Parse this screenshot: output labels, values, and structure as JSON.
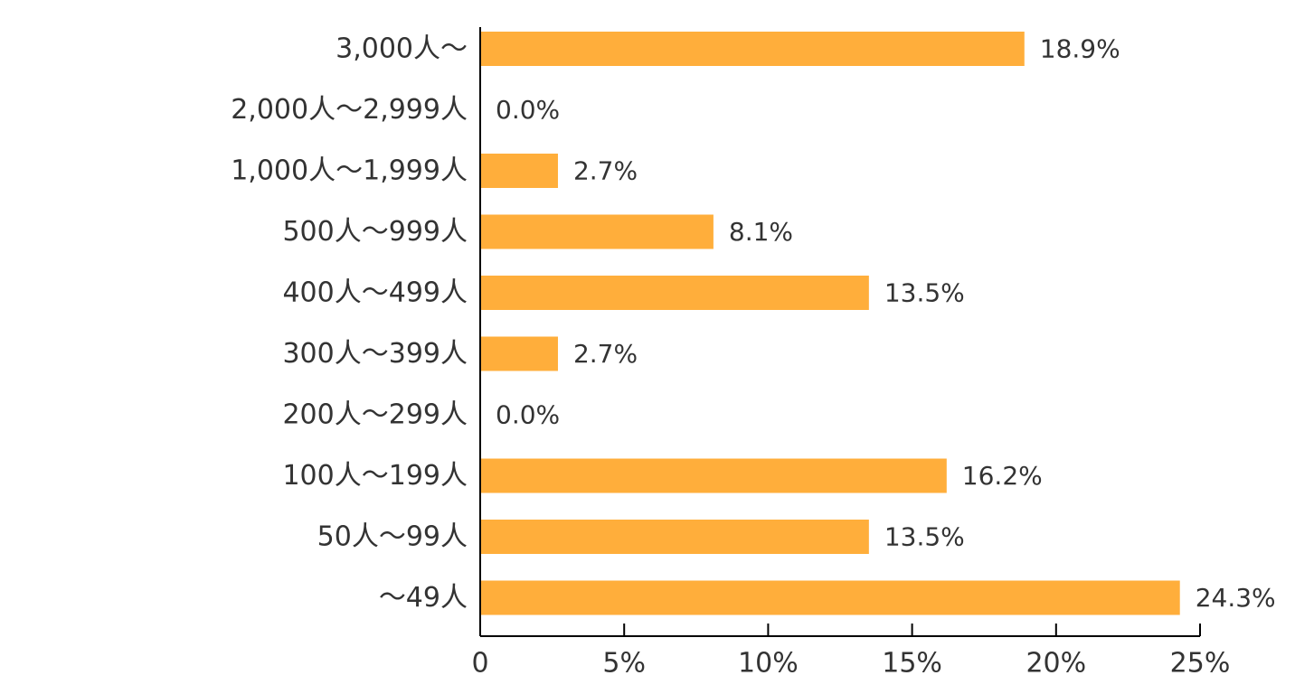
{
  "chart_data": {
    "type": "bar",
    "orientation": "horizontal",
    "categories": [
      "3,000人～",
      "2,000人～2,999人",
      "1,000人～1,999人",
      "500人～999人",
      "400人～499人",
      "300人～399人",
      "200人～299人",
      "100人～199人",
      "50人～99人",
      "～49人"
    ],
    "values": [
      18.9,
      0.0,
      2.7,
      8.1,
      13.5,
      2.7,
      0.0,
      16.2,
      13.5,
      24.3
    ],
    "value_labels": [
      "18.9%",
      "0.0%",
      "2.7%",
      "8.1%",
      "13.5%",
      "2.7%",
      "0.0%",
      "16.2%",
      "13.5%",
      "24.3%"
    ],
    "xlim": [
      0,
      25
    ],
    "x_ticks": [
      0,
      5,
      10,
      15,
      20,
      25
    ],
    "x_tick_labels": [
      "0",
      "5%",
      "10%",
      "15%",
      "20%",
      "25%"
    ],
    "bar_color": "#ffae3b",
    "grid": false,
    "legend": "none"
  }
}
